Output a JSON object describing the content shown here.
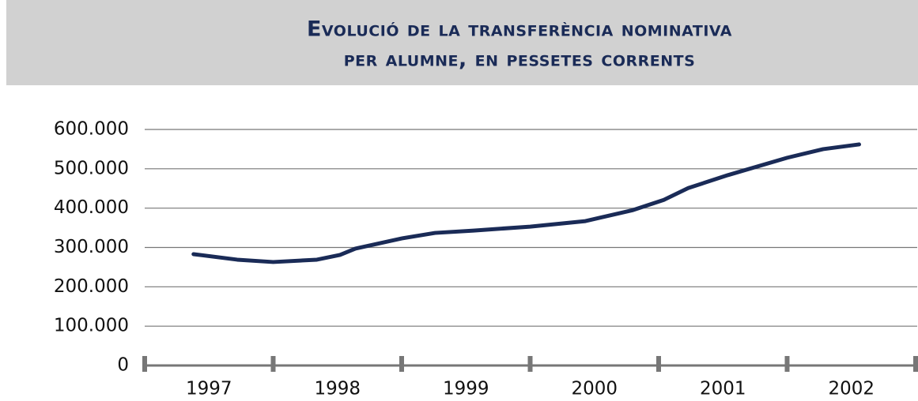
{
  "chart_data": {
    "type": "line",
    "title": [
      "Evolució de la transferència nominativa",
      "per alumne, en pessetes corrents"
    ],
    "x": [
      1996.88,
      1997.22,
      1997.5,
      1997.84,
      1998.02,
      1998.14,
      1998.5,
      1998.76,
      1999.06,
      1999.5,
      1999.93,
      2000.3,
      2000.54,
      2000.73,
      2001.04,
      2001.5,
      2001.78,
      2002.06
    ],
    "values": [
      283000,
      269000,
      263000,
      269000,
      281000,
      297000,
      323000,
      337000,
      343000,
      353000,
      367000,
      395000,
      421000,
      451000,
      484000,
      528000,
      550000,
      562000
    ],
    "color": "#1a2b57",
    "xlim": [
      1996.5,
      2002.5
    ],
    "xticks": [
      1997,
      1998,
      1999,
      2000,
      2001,
      2002
    ],
    "ylim": [
      0,
      600000
    ],
    "yticks": [
      0,
      {
        "value": 100000,
        "label": "100.000"
      },
      {
        "value": 200000,
        "label": "200.000"
      },
      {
        "value": 300000,
        "label": "300.000"
      },
      {
        "value": 400000,
        "label": "400.000"
      },
      {
        "value": 500000,
        "label": "500.000"
      },
      {
        "value": 600000,
        "label": "600.000"
      }
    ],
    "grid": true
  }
}
